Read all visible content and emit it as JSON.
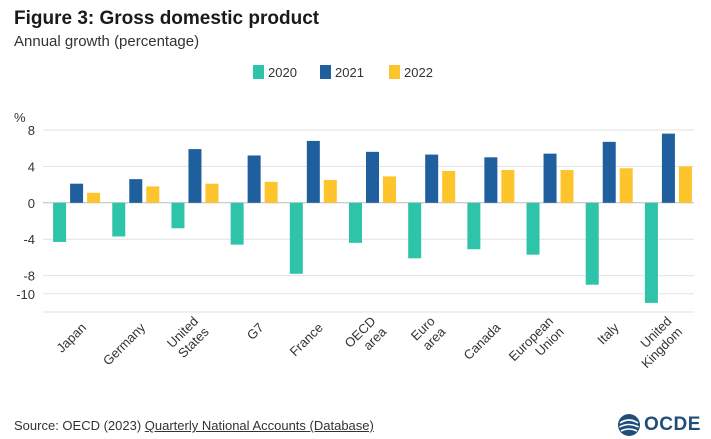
{
  "header": {
    "title": "Figure 3: Gross domestic product",
    "subtitle": "Annual growth (percentage)"
  },
  "footer": {
    "source_prefix": "Source: OECD (2023) ",
    "source_link": "Quarterly National Accounts (Database)",
    "logo_text": "OCDE"
  },
  "colors": {
    "series_2020": "#2ec4a9",
    "series_2021": "#1f5f9e",
    "series_2022": "#fdc42c",
    "grid": "#e2e2e2",
    "axis": "#555555"
  },
  "chart_data": {
    "type": "bar",
    "title": "Figure 3: Gross domestic product",
    "subtitle": "Annual growth (percentage)",
    "ylabel": "%",
    "xlabel": "",
    "ylim": [
      -12,
      8
    ],
    "yticks": [
      8,
      4,
      0,
      -4,
      -8,
      -10
    ],
    "grid": true,
    "legend_position": "top-center",
    "categories": [
      "Japan",
      "Germany",
      "United States",
      "G7",
      "France",
      "OECD area",
      "Euro area",
      "Canada",
      "European Union",
      "Italy",
      "United Kingdom"
    ],
    "series": [
      {
        "name": "2020",
        "values": [
          -4.3,
          -3.7,
          -2.8,
          -4.6,
          -7.8,
          -4.4,
          -6.1,
          -5.1,
          -5.7,
          -9.0,
          -11.0
        ]
      },
      {
        "name": "2021",
        "values": [
          2.1,
          2.6,
          5.9,
          5.2,
          6.8,
          5.6,
          5.3,
          5.0,
          5.4,
          6.7,
          7.6
        ]
      },
      {
        "name": "2022",
        "values": [
          1.1,
          1.8,
          2.1,
          2.3,
          2.5,
          2.9,
          3.5,
          3.6,
          3.6,
          3.8,
          4.0
        ]
      }
    ]
  }
}
